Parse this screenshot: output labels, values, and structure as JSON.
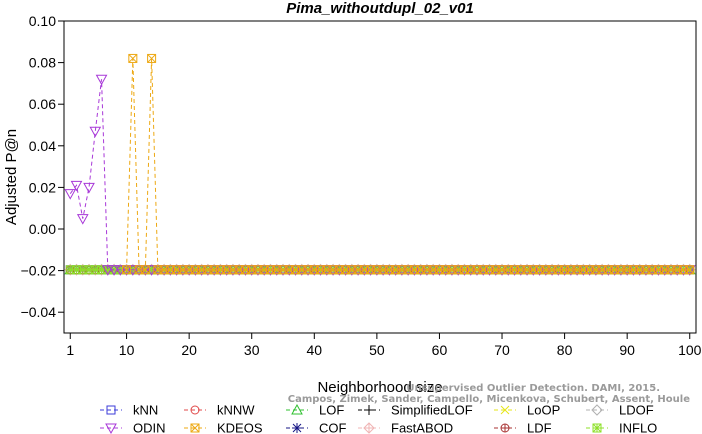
{
  "chart_data": {
    "type": "line",
    "title": "Pima_withoutdupl_02_v01",
    "xlabel": "Neighborhood size",
    "ylabel": "Adjusted P@n",
    "xlim": [
      0,
      101
    ],
    "ylim": [
      -0.05,
      0.1
    ],
    "xticks": [
      1,
      10,
      20,
      30,
      40,
      50,
      60,
      70,
      80,
      90,
      100
    ],
    "yticks": [
      -0.04,
      -0.02,
      0.0,
      0.02,
      0.04,
      0.06,
      0.08,
      0.1
    ],
    "ytick_labels": [
      "−0.04",
      "−0.02",
      "0.00",
      "0.02",
      "0.04",
      "0.06",
      "0.08",
      "0.10"
    ],
    "baseline_value": -0.0196,
    "baseline_x_range": [
      1,
      100
    ],
    "legend_position": "bottom",
    "series": [
      {
        "name": "kNN",
        "color": "#3b3bd9",
        "marker": "square",
        "points": [
          [
            1,
            -0.0196
          ],
          [
            100,
            -0.0196
          ]
        ]
      },
      {
        "name": "kNNW",
        "color": "#e04848",
        "marker": "circle",
        "points": [
          [
            1,
            -0.0196
          ],
          [
            100,
            -0.0196
          ]
        ]
      },
      {
        "name": "LOF",
        "color": "#2fc02f",
        "marker": "triangle-up",
        "points": [
          [
            1,
            -0.0196
          ],
          [
            100,
            -0.0196
          ]
        ]
      },
      {
        "name": "SimplifiedLOF",
        "color": "#000000",
        "marker": "plus",
        "points": [
          [
            1,
            -0.0196
          ],
          [
            100,
            -0.0196
          ]
        ]
      },
      {
        "name": "LoOP",
        "color": "#e6e619",
        "marker": "cross",
        "points": [
          [
            1,
            -0.0196
          ],
          [
            100,
            -0.0196
          ]
        ]
      },
      {
        "name": "LDOF",
        "color": "#b0b0b0",
        "marker": "diamond",
        "points": [
          [
            1,
            -0.0196
          ],
          [
            100,
            -0.0196
          ]
        ]
      },
      {
        "name": "ODIN",
        "color": "#a838d8",
        "marker": "triangle-down",
        "points": [
          [
            1,
            0.017
          ],
          [
            2,
            0.021
          ],
          [
            3,
            0.005
          ],
          [
            4,
            0.02
          ],
          [
            5,
            0.047
          ],
          [
            6,
            0.072
          ],
          [
            7,
            -0.0196
          ],
          [
            100,
            -0.0196
          ]
        ]
      },
      {
        "name": "KDEOS",
        "color": "#eda812",
        "marker": "square-x",
        "points": [
          [
            10,
            -0.0196
          ],
          [
            11,
            0.082
          ],
          [
            12,
            -0.0196
          ],
          [
            13,
            -0.0196
          ],
          [
            14,
            0.082
          ],
          [
            15,
            -0.0196
          ],
          [
            100,
            -0.0196
          ]
        ]
      },
      {
        "name": "COF",
        "color": "#151585",
        "marker": "asterisk",
        "points": [
          [
            1,
            -0.0196
          ],
          [
            100,
            -0.0196
          ]
        ]
      },
      {
        "name": "FastABOD",
        "color": "#f0b4b4",
        "marker": "diamond-plus",
        "points": [
          [
            1,
            -0.0196
          ],
          [
            100,
            -0.0196
          ]
        ]
      },
      {
        "name": "LDF",
        "color": "#a83232",
        "marker": "circle-plus",
        "points": [
          [
            1,
            -0.0196
          ],
          [
            100,
            -0.0196
          ]
        ]
      },
      {
        "name": "INFLO",
        "color": "#8ee02a",
        "marker": "square-asterisk",
        "points": [
          [
            1,
            -0.0196
          ],
          [
            100,
            -0.0196
          ]
        ]
      }
    ],
    "watermark": [
      "Unsupervised Outlier Detection. DAMI, 2015.",
      "Campos, Zimek, Sander, Campello, Micenkova, Schubert, Assent, Houle"
    ]
  }
}
